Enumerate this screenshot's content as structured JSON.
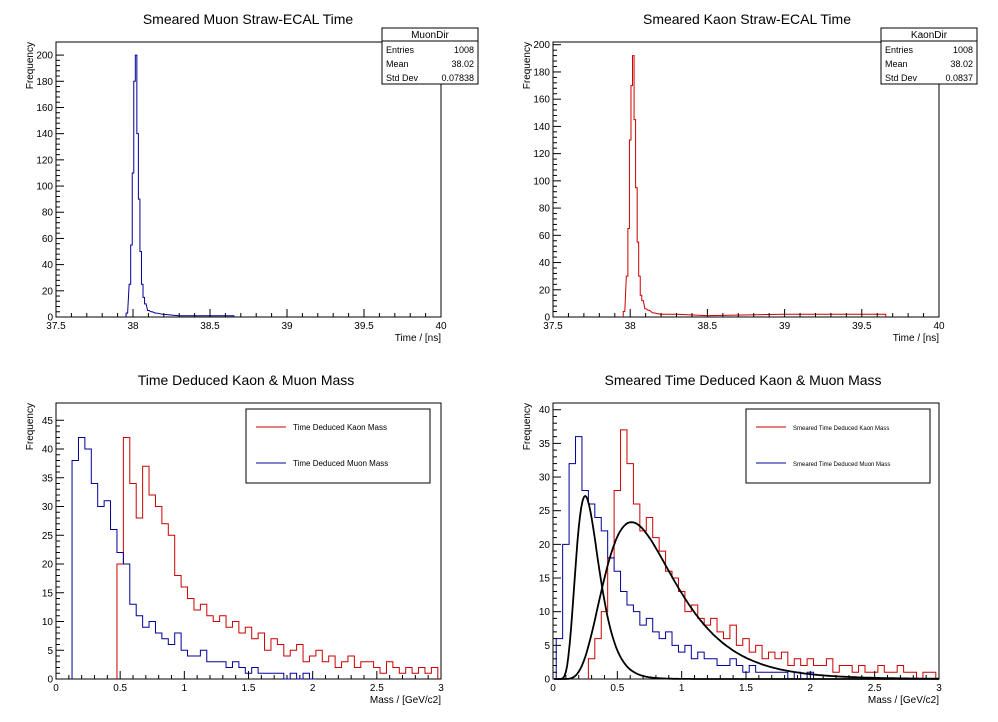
{
  "colors": {
    "muon": "#000099",
    "kaon": "#cc0000",
    "fit": "#000000",
    "axis": "#000000"
  },
  "chart_data": [
    {
      "id": "p1",
      "type": "histogram",
      "title": "Smeared Muon Straw-ECAL Time",
      "xlabel": "Time / [ns]",
      "ylabel": "Frequency",
      "xlim": [
        37.5,
        40
      ],
      "ylim": [
        0,
        210
      ],
      "xticks": [
        37.5,
        38,
        38.5,
        39,
        39.5,
        40
      ],
      "xtick_labels": [
        "37.5",
        "38",
        "38.5",
        "39",
        "39.5",
        "40"
      ],
      "yticks": [
        0,
        20,
        40,
        60,
        80,
        100,
        120,
        140,
        160,
        180,
        200
      ],
      "ytick_labels": [
        "0",
        "20",
        "40",
        "60",
        "80",
        "100",
        "120",
        "140",
        "160",
        "180",
        "200"
      ],
      "stats": {
        "name": "MuonDir",
        "rows": [
          [
            "Entries",
            "1008"
          ],
          [
            "Mean",
            "38.02"
          ],
          [
            "Std Dev",
            "0.07838"
          ]
        ]
      },
      "series": [
        {
          "color_key": "muon",
          "x": [
            37.96,
            37.98,
            37.99,
            38.0,
            38.01,
            38.02,
            38.03,
            38.04,
            38.05,
            38.06,
            38.07,
            38.08,
            38.1,
            38.12,
            38.15,
            38.2,
            38.3,
            38.45,
            38.55,
            38.65
          ],
          "values": [
            3,
            25,
            55,
            110,
            180,
            200,
            140,
            90,
            50,
            25,
            15,
            10,
            5,
            4,
            3,
            2,
            1,
            1,
            1,
            1
          ]
        }
      ]
    },
    {
      "id": "p2",
      "type": "histogram",
      "title": "Smeared Kaon Straw-ECAL Time",
      "xlabel": "Time / [ns]",
      "ylabel": "Frequency",
      "xlim": [
        37.5,
        40
      ],
      "ylim": [
        0,
        202
      ],
      "xticks": [
        37.5,
        38,
        38.5,
        39,
        39.5,
        40
      ],
      "xtick_labels": [
        "37.5",
        "38",
        "38.5",
        "39",
        "39.5",
        "40"
      ],
      "yticks": [
        0,
        20,
        40,
        60,
        80,
        100,
        120,
        140,
        160,
        180,
        200
      ],
      "ytick_labels": [
        "0",
        "20",
        "40",
        "60",
        "80",
        "100",
        "120",
        "140",
        "160",
        "180",
        "200"
      ],
      "stats": {
        "name": "KaonDir",
        "rows": [
          [
            "Entries",
            "1008"
          ],
          [
            "Mean",
            "38.02"
          ],
          [
            "Std Dev",
            "0.0837"
          ]
        ]
      },
      "series": [
        {
          "color_key": "kaon",
          "x": [
            37.96,
            37.98,
            37.99,
            38.0,
            38.01,
            38.02,
            38.03,
            38.04,
            38.05,
            38.06,
            38.07,
            38.08,
            38.1,
            38.12,
            38.15,
            38.2,
            38.3,
            38.5,
            39.0,
            39.65
          ],
          "values": [
            4,
            30,
            65,
            130,
            170,
            192,
            145,
            95,
            55,
            30,
            16,
            12,
            6,
            5,
            3,
            2,
            2,
            1,
            2,
            2
          ]
        }
      ]
    },
    {
      "id": "p3",
      "type": "histogram",
      "title": "Time Deduced Kaon & Muon Mass",
      "xlabel": "Mass / [GeV/c2]",
      "ylabel": "Frequency",
      "xlim": [
        0,
        3
      ],
      "ylim": [
        0,
        48
      ],
      "xticks": [
        0,
        0.5,
        1,
        1.5,
        2,
        2.5,
        3
      ],
      "xtick_labels": [
        "0",
        "0.5",
        "1",
        "1.5",
        "2",
        "2.5",
        "3"
      ],
      "yticks": [
        0,
        5,
        10,
        15,
        20,
        25,
        30,
        35,
        40,
        45
      ],
      "ytick_labels": [
        "0",
        "5",
        "10",
        "15",
        "20",
        "25",
        "30",
        "35",
        "40",
        "45"
      ],
      "legend": [
        {
          "label": "Time Deduced Kaon Mass",
          "color_key": "kaon"
        },
        {
          "label": "Time Deduced Muon Mass",
          "color_key": "muon"
        }
      ],
      "series": [
        {
          "color_key": "kaon",
          "x": [
            0.5,
            0.55,
            0.6,
            0.65,
            0.7,
            0.75,
            0.8,
            0.85,
            0.9,
            0.95,
            1.0,
            1.05,
            1.1,
            1.15,
            1.2,
            1.25,
            1.3,
            1.35,
            1.4,
            1.45,
            1.5,
            1.55,
            1.6,
            1.65,
            1.7,
            1.75,
            1.8,
            1.85,
            1.9,
            1.95,
            2.0,
            2.05,
            2.1,
            2.15,
            2.2,
            2.25,
            2.3,
            2.35,
            2.4,
            2.45,
            2.5,
            2.55,
            2.6,
            2.65,
            2.7,
            2.75,
            2.8,
            2.85,
            2.9,
            2.95
          ],
          "values": [
            20,
            42,
            34,
            28,
            37,
            32,
            30,
            27,
            25,
            18,
            16,
            14,
            12,
            13,
            11,
            10,
            11,
            9,
            10,
            8,
            9,
            7,
            8,
            5,
            7,
            6,
            4,
            5,
            6,
            3,
            4,
            5,
            3,
            4,
            2,
            3,
            4,
            2,
            3,
            3,
            2,
            1,
            3,
            2,
            1,
            2,
            1,
            2,
            1,
            2
          ]
        },
        {
          "color_key": "muon",
          "x": [
            0.15,
            0.2,
            0.25,
            0.3,
            0.35,
            0.4,
            0.45,
            0.5,
            0.55,
            0.6,
            0.65,
            0.7,
            0.75,
            0.8,
            0.85,
            0.9,
            0.95,
            1.0,
            1.05,
            1.1,
            1.15,
            1.2,
            1.25,
            1.3,
            1.35,
            1.4,
            1.45,
            1.5,
            1.55,
            1.6,
            1.65,
            1.7,
            1.75,
            1.8,
            1.85,
            1.9,
            1.95,
            2.0
          ],
          "values": [
            38,
            42,
            40,
            34,
            30,
            31,
            26,
            22,
            20,
            13,
            11,
            9,
            10,
            8,
            7,
            6,
            8,
            5,
            4,
            4,
            5,
            3,
            3,
            3,
            2,
            3,
            2,
            1,
            2,
            1,
            1,
            1,
            1,
            0,
            1,
            0,
            1,
            0
          ]
        }
      ]
    },
    {
      "id": "p4",
      "type": "histogram",
      "title": "Smeared Time Deduced Kaon & Muon Mass",
      "xlabel": "Mass / [GeV/c2]",
      "ylabel": "Frequency",
      "xlim": [
        0,
        3
      ],
      "ylim": [
        0,
        41
      ],
      "xticks": [
        0,
        0.5,
        1,
        1.5,
        2,
        2.5,
        3
      ],
      "xtick_labels": [
        "0",
        "0.5",
        "1",
        "1.5",
        "2",
        "2.5",
        "3"
      ],
      "yticks": [
        0,
        5,
        10,
        15,
        20,
        25,
        30,
        35,
        40
      ],
      "ytick_labels": [
        "0",
        "5",
        "10",
        "15",
        "20",
        "25",
        "30",
        "35",
        "40"
      ],
      "legend": [
        {
          "label": "Smeared Time Deduced Kaon Mass",
          "color_key": "kaon"
        },
        {
          "label": "Smeared Time Deduced Muon Mass",
          "color_key": "muon"
        }
      ],
      "series": [
        {
          "color_key": "kaon",
          "x": [
            0.3,
            0.35,
            0.4,
            0.45,
            0.5,
            0.55,
            0.6,
            0.65,
            0.7,
            0.75,
            0.8,
            0.85,
            0.9,
            0.95,
            1.0,
            1.05,
            1.1,
            1.15,
            1.2,
            1.25,
            1.3,
            1.35,
            1.4,
            1.45,
            1.5,
            1.55,
            1.6,
            1.65,
            1.7,
            1.75,
            1.8,
            1.85,
            1.9,
            1.95,
            2.0,
            2.05,
            2.1,
            2.15,
            2.2,
            2.25,
            2.3,
            2.35,
            2.4,
            2.45,
            2.5,
            2.55,
            2.6,
            2.65,
            2.7,
            2.75,
            2.8,
            2.85,
            2.9,
            2.95
          ],
          "values": [
            3,
            6,
            10,
            18,
            28,
            37,
            32,
            26,
            22,
            24,
            21,
            19,
            16,
            15,
            13,
            10,
            11,
            9,
            8,
            9,
            7,
            6,
            8,
            5,
            6,
            4,
            5,
            3,
            4,
            3,
            4,
            2,
            3,
            2,
            3,
            2,
            2,
            3,
            1,
            2,
            2,
            1,
            2,
            1,
            1,
            2,
            1,
            1,
            2,
            1,
            1,
            0,
            1,
            1
          ]
        },
        {
          "color_key": "muon",
          "x": [
            0.05,
            0.1,
            0.15,
            0.2,
            0.25,
            0.3,
            0.35,
            0.4,
            0.45,
            0.5,
            0.55,
            0.6,
            0.65,
            0.7,
            0.75,
            0.8,
            0.85,
            0.9,
            0.95,
            1.0,
            1.05,
            1.1,
            1.15,
            1.2,
            1.25,
            1.3,
            1.35,
            1.4,
            1.45,
            1.5,
            1.55,
            1.6,
            1.65,
            1.7,
            1.75,
            1.8,
            1.85,
            1.9,
            1.95,
            2.0
          ],
          "values": [
            6,
            20,
            32,
            36,
            28,
            26,
            24,
            22,
            18,
            16,
            13,
            11,
            10,
            8,
            9,
            7,
            6,
            7,
            5,
            4,
            5,
            3,
            4,
            3,
            3,
            2,
            2,
            3,
            2,
            1,
            2,
            1,
            1,
            1,
            1,
            1,
            0,
            1,
            0,
            1
          ]
        }
      ],
      "fits": [
        {
          "color_key": "fit",
          "peak": 0.25,
          "amplitude": 27.2,
          "width": 0.36
        },
        {
          "color_key": "fit",
          "peak": 0.61,
          "amplitude": 23.3,
          "width": 0.45
        }
      ]
    }
  ]
}
